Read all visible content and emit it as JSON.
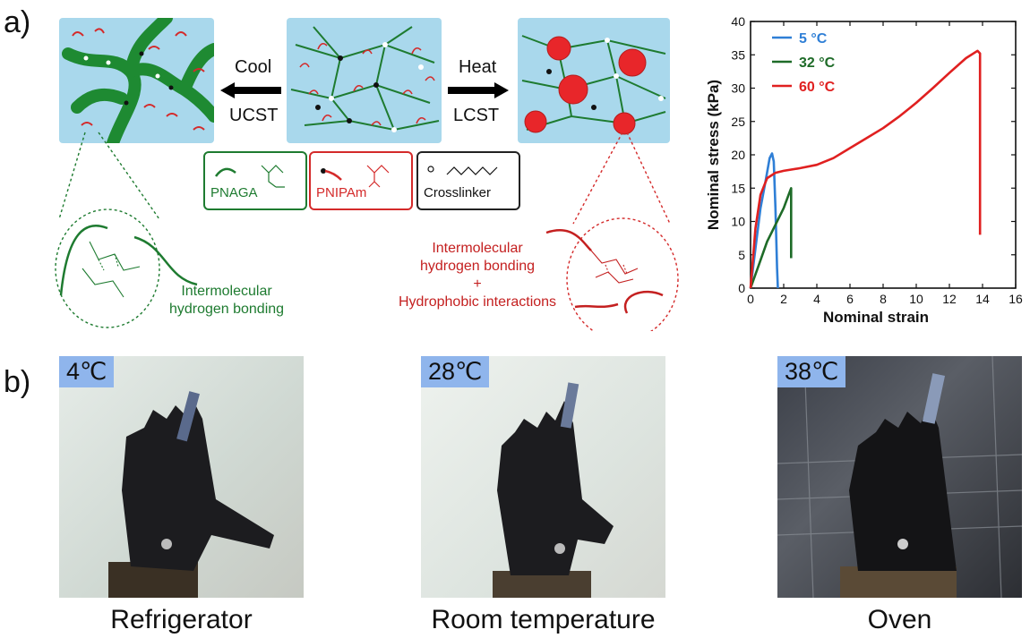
{
  "panel_a": {
    "label": "a)",
    "cool_label": "Cool",
    "ucst_label": "UCST",
    "heat_label": "Heat",
    "lcst_label": "LCST",
    "legend": {
      "pnaga": "PNAGA",
      "pnipam": "PNIPAm",
      "crosslinker": "Crosslinker"
    },
    "left_bond_text": [
      "Intermolecular",
      "hydrogen bonding"
    ],
    "right_bond_text": [
      "Intermolecular",
      "hydrogen bonding",
      "+",
      "Hydrophobic interactions"
    ],
    "colors": {
      "green": "#1e7b30",
      "red": "#d42a2a",
      "blue": "#a9d8ec"
    }
  },
  "chart_data": {
    "type": "line",
    "xlabel": "Nominal strain",
    "ylabel": "Nominal stress (kPa)",
    "xlim": [
      0,
      16
    ],
    "ylim": [
      0,
      40
    ],
    "xticks": [
      "0",
      "2",
      "4",
      "6",
      "8",
      "10",
      "12",
      "14",
      "16"
    ],
    "yticks": [
      "0",
      "5",
      "10",
      "15",
      "20",
      "25",
      "30",
      "35",
      "40"
    ],
    "legend_position": "top-left",
    "series": [
      {
        "name": "5 °C",
        "color": "#2f7fd6",
        "x": [
          0,
          0.3,
          0.6,
          0.9,
          1.15,
          1.3,
          1.4,
          1.5,
          1.6,
          1.65
        ],
        "y": [
          0,
          6,
          12,
          16,
          19.5,
          20.2,
          19,
          12,
          3,
          0
        ]
      },
      {
        "name": "32 °C",
        "color": "#1e6b28",
        "x": [
          0,
          0.5,
          1.0,
          1.5,
          2.0,
          2.3,
          2.45,
          2.45
        ],
        "y": [
          0,
          3.5,
          7,
          9.5,
          12,
          14,
          15,
          4.5
        ]
      },
      {
        "name": "60 °C",
        "color": "#e02020",
        "x": [
          0,
          0.3,
          0.6,
          1.0,
          1.5,
          2.0,
          3.0,
          4.0,
          5.0,
          6.0,
          7.0,
          8.0,
          9.0,
          10.0,
          11.0,
          12.0,
          13.0,
          13.7,
          13.85,
          13.85
        ],
        "y": [
          0,
          9,
          14,
          16.5,
          17.3,
          17.6,
          18,
          18.5,
          19.5,
          21,
          22.5,
          24,
          25.8,
          27.8,
          30,
          32.3,
          34.5,
          35.6,
          35.2,
          8
        ]
      }
    ]
  },
  "panel_b": {
    "label": "b)",
    "photos": [
      {
        "temp": "4℃",
        "caption": "Refrigerator"
      },
      {
        "temp": "28℃",
        "caption": "Room temperature"
      },
      {
        "temp": "38℃",
        "caption": "Oven"
      }
    ]
  }
}
